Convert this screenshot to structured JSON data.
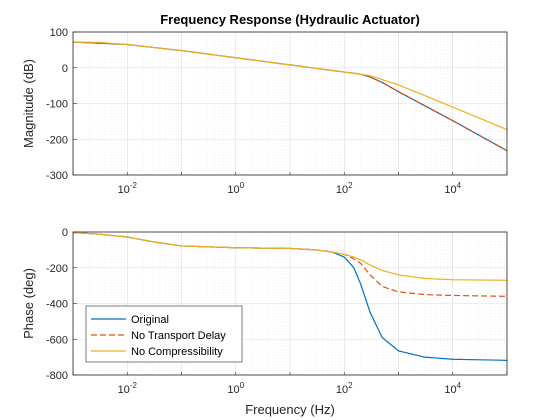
{
  "chart_data": {
    "type": "line",
    "legend_placement": "bottom-left",
    "grid": true,
    "x_scale": "log",
    "colors": {
      "Original": "#0072BD",
      "No Transport Delay": "#D95319",
      "No Compressibility": "#EDB120"
    },
    "subplots": [
      {
        "name": "magnitude",
        "title": "Frequency Response (Hydraulic Actuator)",
        "xlabel": "",
        "ylabel": "Magnitude (dB)",
        "xlim": [
          0.001,
          100000
        ],
        "ylim": [
          -300,
          100
        ],
        "yticks": [
          100,
          0,
          -100,
          -200,
          -300
        ],
        "xticks": [
          {
            "base": "10",
            "exp": "-2",
            "value": 0.01
          },
          {
            "base": "10",
            "exp": "0",
            "value": 1
          },
          {
            "base": "10",
            "exp": "2",
            "value": 100
          },
          {
            "base": "10",
            "exp": "4",
            "value": 10000
          }
        ],
        "series": [
          {
            "name": "Original",
            "style": "solid",
            "x": [
              0.001,
              0.01,
              0.1,
              1,
              10,
              100,
              200,
              300,
              500,
              1000,
              10000,
              100000
            ],
            "y": [
              72,
              65,
              48,
              28,
              8,
              -12,
              -18,
              -26,
              -41,
              -67,
              -148,
              -232
            ]
          },
          {
            "name": "No Transport Delay",
            "style": "dashed",
            "x": [
              0.001,
              0.01,
              0.1,
              1,
              10,
              100,
              200,
              300,
              500,
              1000,
              10000,
              100000
            ],
            "y": [
              72,
              65,
              48,
              28,
              8,
              -12,
              -18,
              -26,
              -41,
              -67,
              -148,
              -232
            ]
          },
          {
            "name": "No Compressibility",
            "style": "solid",
            "x": [
              0.001,
              0.003,
              0.01,
              0.1,
              1,
              10,
              100,
              300,
              1000,
              10000,
              100000
            ],
            "y": [
              72,
              71,
              65,
              48,
              28,
              8,
              -12,
              -22,
              -48,
              -110,
              -173
            ]
          }
        ]
      },
      {
        "name": "phase",
        "title": "",
        "xlabel": "Frequency (Hz)",
        "ylabel": "Phase (deg)",
        "xlim": [
          0.001,
          100000
        ],
        "ylim": [
          -800,
          0
        ],
        "yticks": [
          0,
          -200,
          -400,
          -600,
          -800
        ],
        "xticks": [
          {
            "base": "10",
            "exp": "-2",
            "value": 0.01
          },
          {
            "base": "10",
            "exp": "0",
            "value": 1
          },
          {
            "base": "10",
            "exp": "2",
            "value": 100
          },
          {
            "base": "10",
            "exp": "4",
            "value": 10000
          }
        ],
        "series": [
          {
            "name": "Original",
            "style": "solid",
            "x": [
              0.001,
              0.003,
              0.01,
              0.03,
              0.1,
              1,
              10,
              30,
              60,
              100,
              150,
              200,
              300,
              500,
              1000,
              3000,
              10000,
              100000
            ],
            "y": [
              -3,
              -12,
              -28,
              -55,
              -78,
              -88,
              -92,
              -100,
              -112,
              -140,
              -200,
              -290,
              -450,
              -590,
              -665,
              -700,
              -712,
              -718
            ]
          },
          {
            "name": "No Transport Delay",
            "style": "dashed",
            "x": [
              0.001,
              0.003,
              0.01,
              0.03,
              0.1,
              1,
              10,
              30,
              60,
              100,
              150,
              200,
              300,
              500,
              1000,
              3000,
              10000,
              100000
            ],
            "y": [
              -3,
              -12,
              -28,
              -55,
              -78,
              -88,
              -92,
              -100,
              -112,
              -125,
              -150,
              -175,
              -240,
              -305,
              -335,
              -350,
              -355,
              -360
            ]
          },
          {
            "name": "No Compressibility",
            "style": "solid",
            "x": [
              0.001,
              0.003,
              0.01,
              0.03,
              0.1,
              1,
              10,
              30,
              60,
              100,
              150,
              200,
              300,
              500,
              1000,
              3000,
              10000,
              100000
            ],
            "y": [
              -3,
              -12,
              -28,
              -55,
              -78,
              -88,
              -92,
              -100,
              -112,
              -125,
              -140,
              -155,
              -185,
              -215,
              -240,
              -260,
              -267,
              -270
            ]
          }
        ]
      }
    ]
  }
}
